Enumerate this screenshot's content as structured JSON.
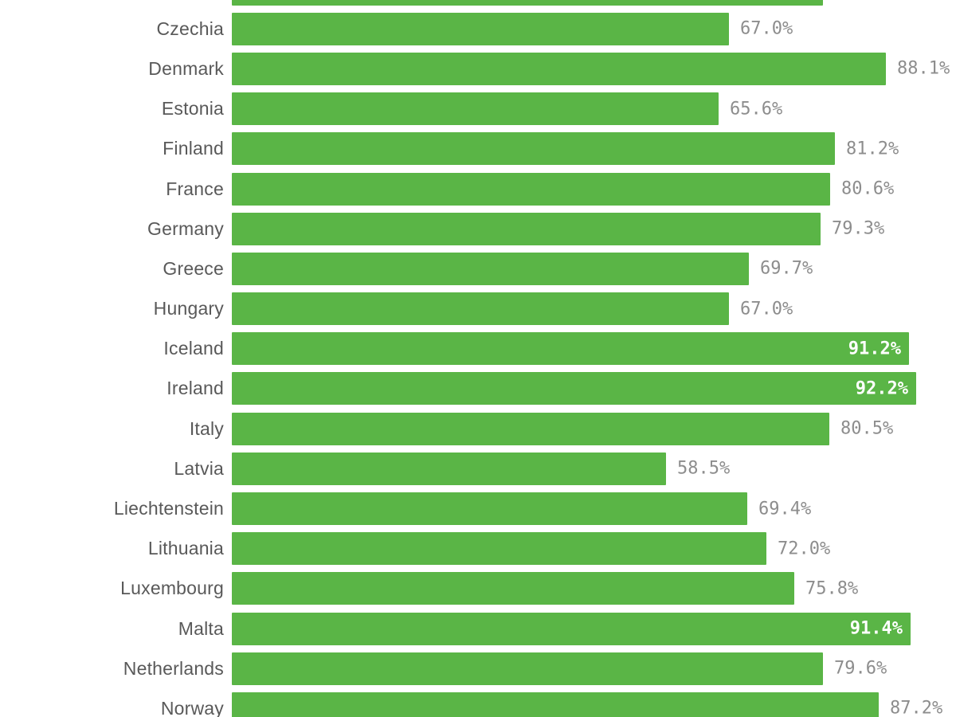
{
  "chart_data": {
    "type": "bar",
    "orientation": "horizontal",
    "title": "",
    "xlabel": "",
    "ylabel": "",
    "xlim": [
      0,
      100
    ],
    "grid": false,
    "axes_visible": false,
    "value_format": "percent, one decimal",
    "bar_color": "#5ab546",
    "category_label_color": "#595959",
    "value_label_color_outside": "#8d8d8d",
    "value_label_color_inside": "#ffffff",
    "categories": [
      "Czechia",
      "Denmark",
      "Estonia",
      "Finland",
      "France",
      "Germany",
      "Greece",
      "Hungary",
      "Iceland",
      "Ireland",
      "Italy",
      "Latvia",
      "Liechtenstein",
      "Lithuania",
      "Luxembourg",
      "Malta",
      "Netherlands",
      "Norway"
    ],
    "values": [
      67.0,
      88.1,
      65.6,
      81.2,
      80.6,
      79.3,
      69.7,
      67.0,
      91.2,
      92.2,
      80.5,
      58.5,
      69.4,
      72.0,
      75.8,
      91.4,
      79.6,
      87.2
    ],
    "rows": [
      {
        "country": "",
        "value": 79.6,
        "value_label": "",
        "label_inside": false,
        "cut_off_top_edge": true
      },
      {
        "country": "Czechia",
        "value": 67.0,
        "value_label": "67.0%",
        "label_inside": false
      },
      {
        "country": "Denmark",
        "value": 88.1,
        "value_label": "88.1%",
        "label_inside": false
      },
      {
        "country": "Estonia",
        "value": 65.6,
        "value_label": "65.6%",
        "label_inside": false
      },
      {
        "country": "Finland",
        "value": 81.2,
        "value_label": "81.2%",
        "label_inside": false
      },
      {
        "country": "France",
        "value": 80.6,
        "value_label": "80.6%",
        "label_inside": false
      },
      {
        "country": "Germany",
        "value": 79.3,
        "value_label": "79.3%",
        "label_inside": false
      },
      {
        "country": "Greece",
        "value": 69.7,
        "value_label": "69.7%",
        "label_inside": false
      },
      {
        "country": "Hungary",
        "value": 67.0,
        "value_label": "67.0%",
        "label_inside": false
      },
      {
        "country": "Iceland",
        "value": 91.2,
        "value_label": "91.2%",
        "label_inside": true
      },
      {
        "country": "Ireland",
        "value": 92.2,
        "value_label": "92.2%",
        "label_inside": true
      },
      {
        "country": "Italy",
        "value": 80.5,
        "value_label": "80.5%",
        "label_inside": false
      },
      {
        "country": "Latvia",
        "value": 58.5,
        "value_label": "58.5%",
        "label_inside": false
      },
      {
        "country": "Liechtenstein",
        "value": 69.4,
        "value_label": "69.4%",
        "label_inside": false
      },
      {
        "country": "Lithuania",
        "value": 72.0,
        "value_label": "72.0%",
        "label_inside": false
      },
      {
        "country": "Luxembourg",
        "value": 75.8,
        "value_label": "75.8%",
        "label_inside": false
      },
      {
        "country": "Malta",
        "value": 91.4,
        "value_label": "91.4%",
        "label_inside": true
      },
      {
        "country": "Netherlands",
        "value": 79.6,
        "value_label": "79.6%",
        "label_inside": false
      },
      {
        "country": "Norway",
        "value": 87.2,
        "value_label": "87.2%",
        "label_inside": false
      }
    ],
    "notes": "Top bar is cut off by the viewport top edge (its country and value labels are not visible; value estimated from bar length). Last bar (Norway) is slightly cut off by the bottom edge."
  }
}
